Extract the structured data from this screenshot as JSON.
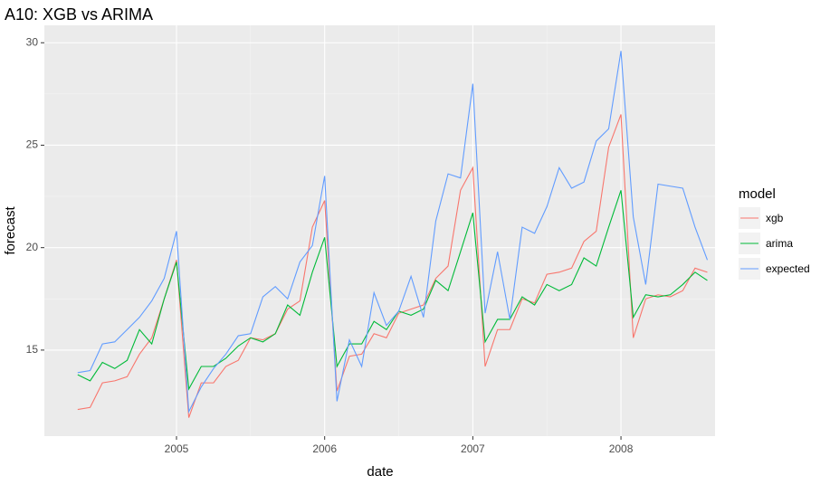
{
  "chart_data": {
    "type": "line",
    "title": "A10: XGB vs ARIMA",
    "x_label": "date",
    "y_label": "forecast",
    "legend_title": "model",
    "legend_position": "right",
    "grid": true,
    "x": [
      2004.333,
      2004.417,
      2004.5,
      2004.583,
      2004.667,
      2004.75,
      2004.833,
      2004.917,
      2005.0,
      2005.083,
      2005.167,
      2005.25,
      2005.333,
      2005.417,
      2005.5,
      2005.583,
      2005.667,
      2005.75,
      2005.833,
      2005.917,
      2006.0,
      2006.083,
      2006.167,
      2006.25,
      2006.333,
      2006.417,
      2006.5,
      2006.583,
      2006.667,
      2006.75,
      2006.833,
      2006.917,
      2007.0,
      2007.083,
      2007.167,
      2007.25,
      2007.333,
      2007.417,
      2007.5,
      2007.583,
      2007.667,
      2007.75,
      2007.833,
      2007.917,
      2008.0,
      2008.083,
      2008.167,
      2008.25,
      2008.333,
      2008.417,
      2008.5,
      2008.583
    ],
    "series": [
      {
        "name": "xgb",
        "color": "#F8766D",
        "values": [
          12.1,
          12.2,
          13.4,
          13.5,
          13.7,
          14.8,
          15.6,
          17.5,
          19.4,
          11.7,
          13.4,
          13.4,
          14.2,
          14.5,
          15.6,
          15.5,
          15.8,
          17.0,
          17.4,
          21.0,
          22.3,
          13.0,
          14.7,
          14.8,
          15.8,
          15.6,
          16.8,
          17.0,
          17.2,
          18.5,
          19.1,
          22.8,
          23.9,
          14.2,
          16.0,
          16.0,
          17.5,
          17.3,
          18.7,
          18.8,
          19.0,
          20.3,
          20.8,
          24.9,
          26.5,
          15.6,
          17.5,
          17.7,
          17.6,
          17.9,
          19.0,
          18.8
        ]
      },
      {
        "name": "arima",
        "color": "#00BA38",
        "values": [
          13.8,
          13.5,
          14.4,
          14.1,
          14.5,
          16.0,
          15.3,
          17.5,
          19.3,
          13.1,
          14.2,
          14.2,
          14.6,
          15.2,
          15.6,
          15.4,
          15.8,
          17.2,
          16.7,
          18.8,
          20.5,
          14.2,
          15.3,
          15.3,
          16.4,
          16.0,
          16.9,
          16.7,
          17.0,
          18.4,
          17.9,
          19.8,
          21.7,
          15.4,
          16.5,
          16.5,
          17.6,
          17.2,
          18.2,
          17.9,
          18.2,
          19.5,
          19.1,
          21.0,
          22.8,
          16.6,
          17.7,
          17.6,
          17.7,
          18.2,
          18.8,
          18.4
        ]
      },
      {
        "name": "expected",
        "color": "#619CFF",
        "values": [
          13.9,
          14.0,
          15.3,
          15.4,
          16.0,
          16.6,
          17.4,
          18.5,
          20.8,
          12.0,
          13.2,
          14.1,
          14.8,
          15.7,
          15.8,
          17.6,
          18.1,
          17.5,
          19.3,
          20.1,
          23.5,
          12.5,
          15.5,
          14.2,
          17.8,
          16.2,
          16.9,
          18.6,
          16.6,
          21.3,
          23.6,
          23.4,
          28.0,
          16.8,
          19.8,
          16.5,
          21.0,
          20.7,
          22.0,
          23.9,
          22.9,
          23.2,
          25.2,
          25.8,
          29.6,
          21.5,
          18.2,
          23.1,
          23.0,
          22.9,
          21.0,
          19.4
        ]
      }
    ],
    "xlim": [
      2004.108,
      2008.635
    ],
    "xticks": [
      2005,
      2006,
      2007,
      2008
    ],
    "ylim": [
      10.8,
      30.85
    ],
    "yticks": [
      15,
      20,
      25,
      30
    ]
  }
}
